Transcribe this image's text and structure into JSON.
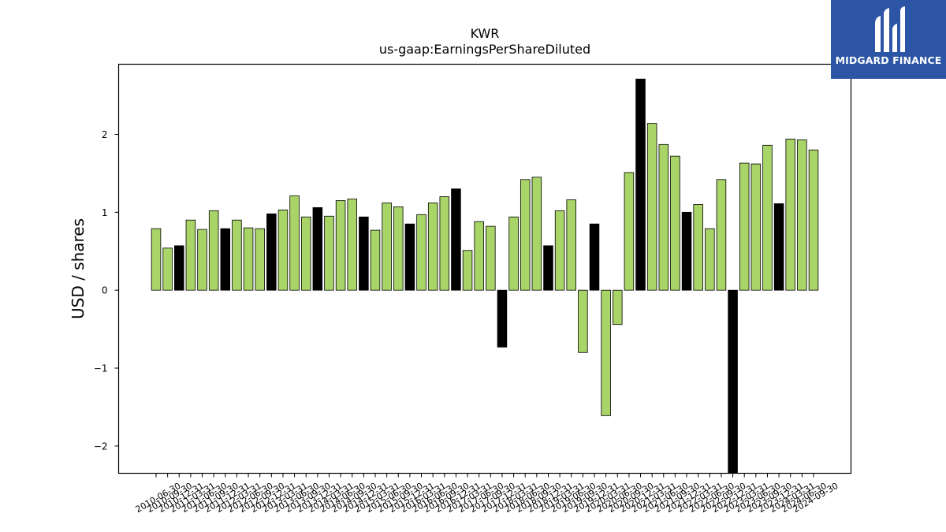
{
  "logo": {
    "text": "MIDGARD FINANCE"
  },
  "chart_data": {
    "type": "bar",
    "title": "KWR",
    "subtitle": "us-gaap:EarningsPerShareDiluted",
    "ylabel": "USD / shares",
    "xlabel": "",
    "ylim": [
      -2.35,
      2.9
    ],
    "yticks": [
      -2,
      -1,
      0,
      1,
      2
    ],
    "ytick_labels": [
      "−2",
      "−1",
      "0",
      "1",
      "2"
    ],
    "grid": false,
    "colors": {
      "quarter": "#a8d468",
      "annual": "#000000",
      "edge": "#000000"
    },
    "categories": [
      "2010-06-30",
      "2010-09-30",
      "2010-12-31",
      "2011-03-31",
      "2011-06-30",
      "2011-09-30",
      "2011-12-31",
      "2012-03-31",
      "2012-06-30",
      "2012-09-30",
      "2012-12-31",
      "2013-03-31",
      "2013-06-30",
      "2013-09-30",
      "2013-12-31",
      "2014-03-31",
      "2014-06-30",
      "2014-09-30",
      "2014-12-31",
      "2015-03-31",
      "2015-06-30",
      "2015-09-30",
      "2015-12-31",
      "2016-03-31",
      "2016-06-30",
      "2016-09-30",
      "2016-12-31",
      "2017-03-31",
      "2017-06-30",
      "2017-09-30",
      "2017-12-31",
      "2018-03-31",
      "2018-06-30",
      "2018-09-30",
      "2018-12-31",
      "2019-03-31",
      "2019-06-30",
      "2019-09-30",
      "2019-12-31",
      "2020-03-31",
      "2020-06-30",
      "2020-09-30",
      "2020-12-31",
      "2021-03-31",
      "2021-06-30",
      "2021-09-30",
      "2021-12-31",
      "2022-03-31",
      "2022-06-30",
      "2022-09-30",
      "2022-12-31",
      "2023-03-31",
      "2023-06-30",
      "2023-09-30",
      "2023-12-31",
      "2024-03-31",
      "2024-06-30",
      "2024-09-30"
    ],
    "tick_labels": [
      "2010-06-30",
      "2010-09-30",
      "2010-12-31",
      "2011-03-31",
      "2011-06-30",
      "2011-09-30",
      "2011-12-31",
      "2012-03-31",
      "2012-06-30",
      "2012-09-30",
      "2012-12-31",
      "2013-03-31",
      "2013-06-30",
      "2013-09-30",
      "2013-12-31",
      "2014-03-31",
      "2014-06-30",
      "2014-09-30",
      "2014-12-31",
      "2015-03-31",
      "2015-06-30",
      "2015-09-30",
      "2015-12-31",
      "2016-03-31",
      "2016-06-30",
      "2016-09-30",
      "2016-12-31",
      "2017-03-31",
      "2017-06-30",
      "2017-09-30",
      "2017-12-31",
      "2018-03-31",
      "2018-06-30",
      "2018-09-30",
      "2018-12-31",
      "2019-03-31",
      "2019-06-30",
      "2019-09-30",
      "2019-12-31",
      "2020-03-31",
      "2020-06-30",
      "2020-09-30",
      "2020-12-31",
      "2021-03-31",
      "2021-06-30",
      "2021-09-30",
      "2021-12-31",
      "2022-03-31",
      "2022-06-30",
      "2022-09-30",
      "2022-12-31",
      "2023-03-31",
      "2023-06-30",
      "2023-09-30",
      "2023-12-31",
      "2024-03-31",
      "2024-06-30",
      "2024-09-30"
    ],
    "values": [
      0.79,
      0.54,
      0.57,
      0.9,
      0.78,
      1.02,
      0.79,
      0.9,
      0.8,
      0.79,
      0.98,
      1.03,
      1.21,
      0.94,
      1.06,
      0.95,
      1.15,
      1.17,
      0.94,
      0.77,
      1.12,
      1.07,
      0.85,
      0.97,
      1.12,
      1.2,
      1.3,
      0.51,
      0.88,
      0.82,
      -0.73,
      0.94,
      1.42,
      1.45,
      0.57,
      1.02,
      1.16,
      -0.8,
      0.85,
      -1.61,
      -0.44,
      1.51,
      2.71,
      2.14,
      1.87,
      1.72,
      1.0,
      1.1,
      0.79,
      1.42,
      -2.36,
      1.63,
      1.62,
      1.86,
      1.11,
      1.94,
      1.93,
      1.8
    ],
    "bar_type": [
      "q",
      "q",
      "a",
      "q",
      "q",
      "q",
      "a",
      "q",
      "q",
      "q",
      "a",
      "q",
      "q",
      "q",
      "a",
      "q",
      "q",
      "q",
      "a",
      "q",
      "q",
      "q",
      "a",
      "q",
      "q",
      "q",
      "a",
      "q",
      "q",
      "q",
      "a",
      "q",
      "q",
      "q",
      "a",
      "q",
      "q",
      "q",
      "a",
      "q",
      "q",
      "q",
      "a",
      "q",
      "q",
      "q",
      "a",
      "q",
      "q",
      "q",
      "a",
      "q",
      "q",
      "q",
      "a",
      "q",
      "q",
      "q"
    ]
  }
}
